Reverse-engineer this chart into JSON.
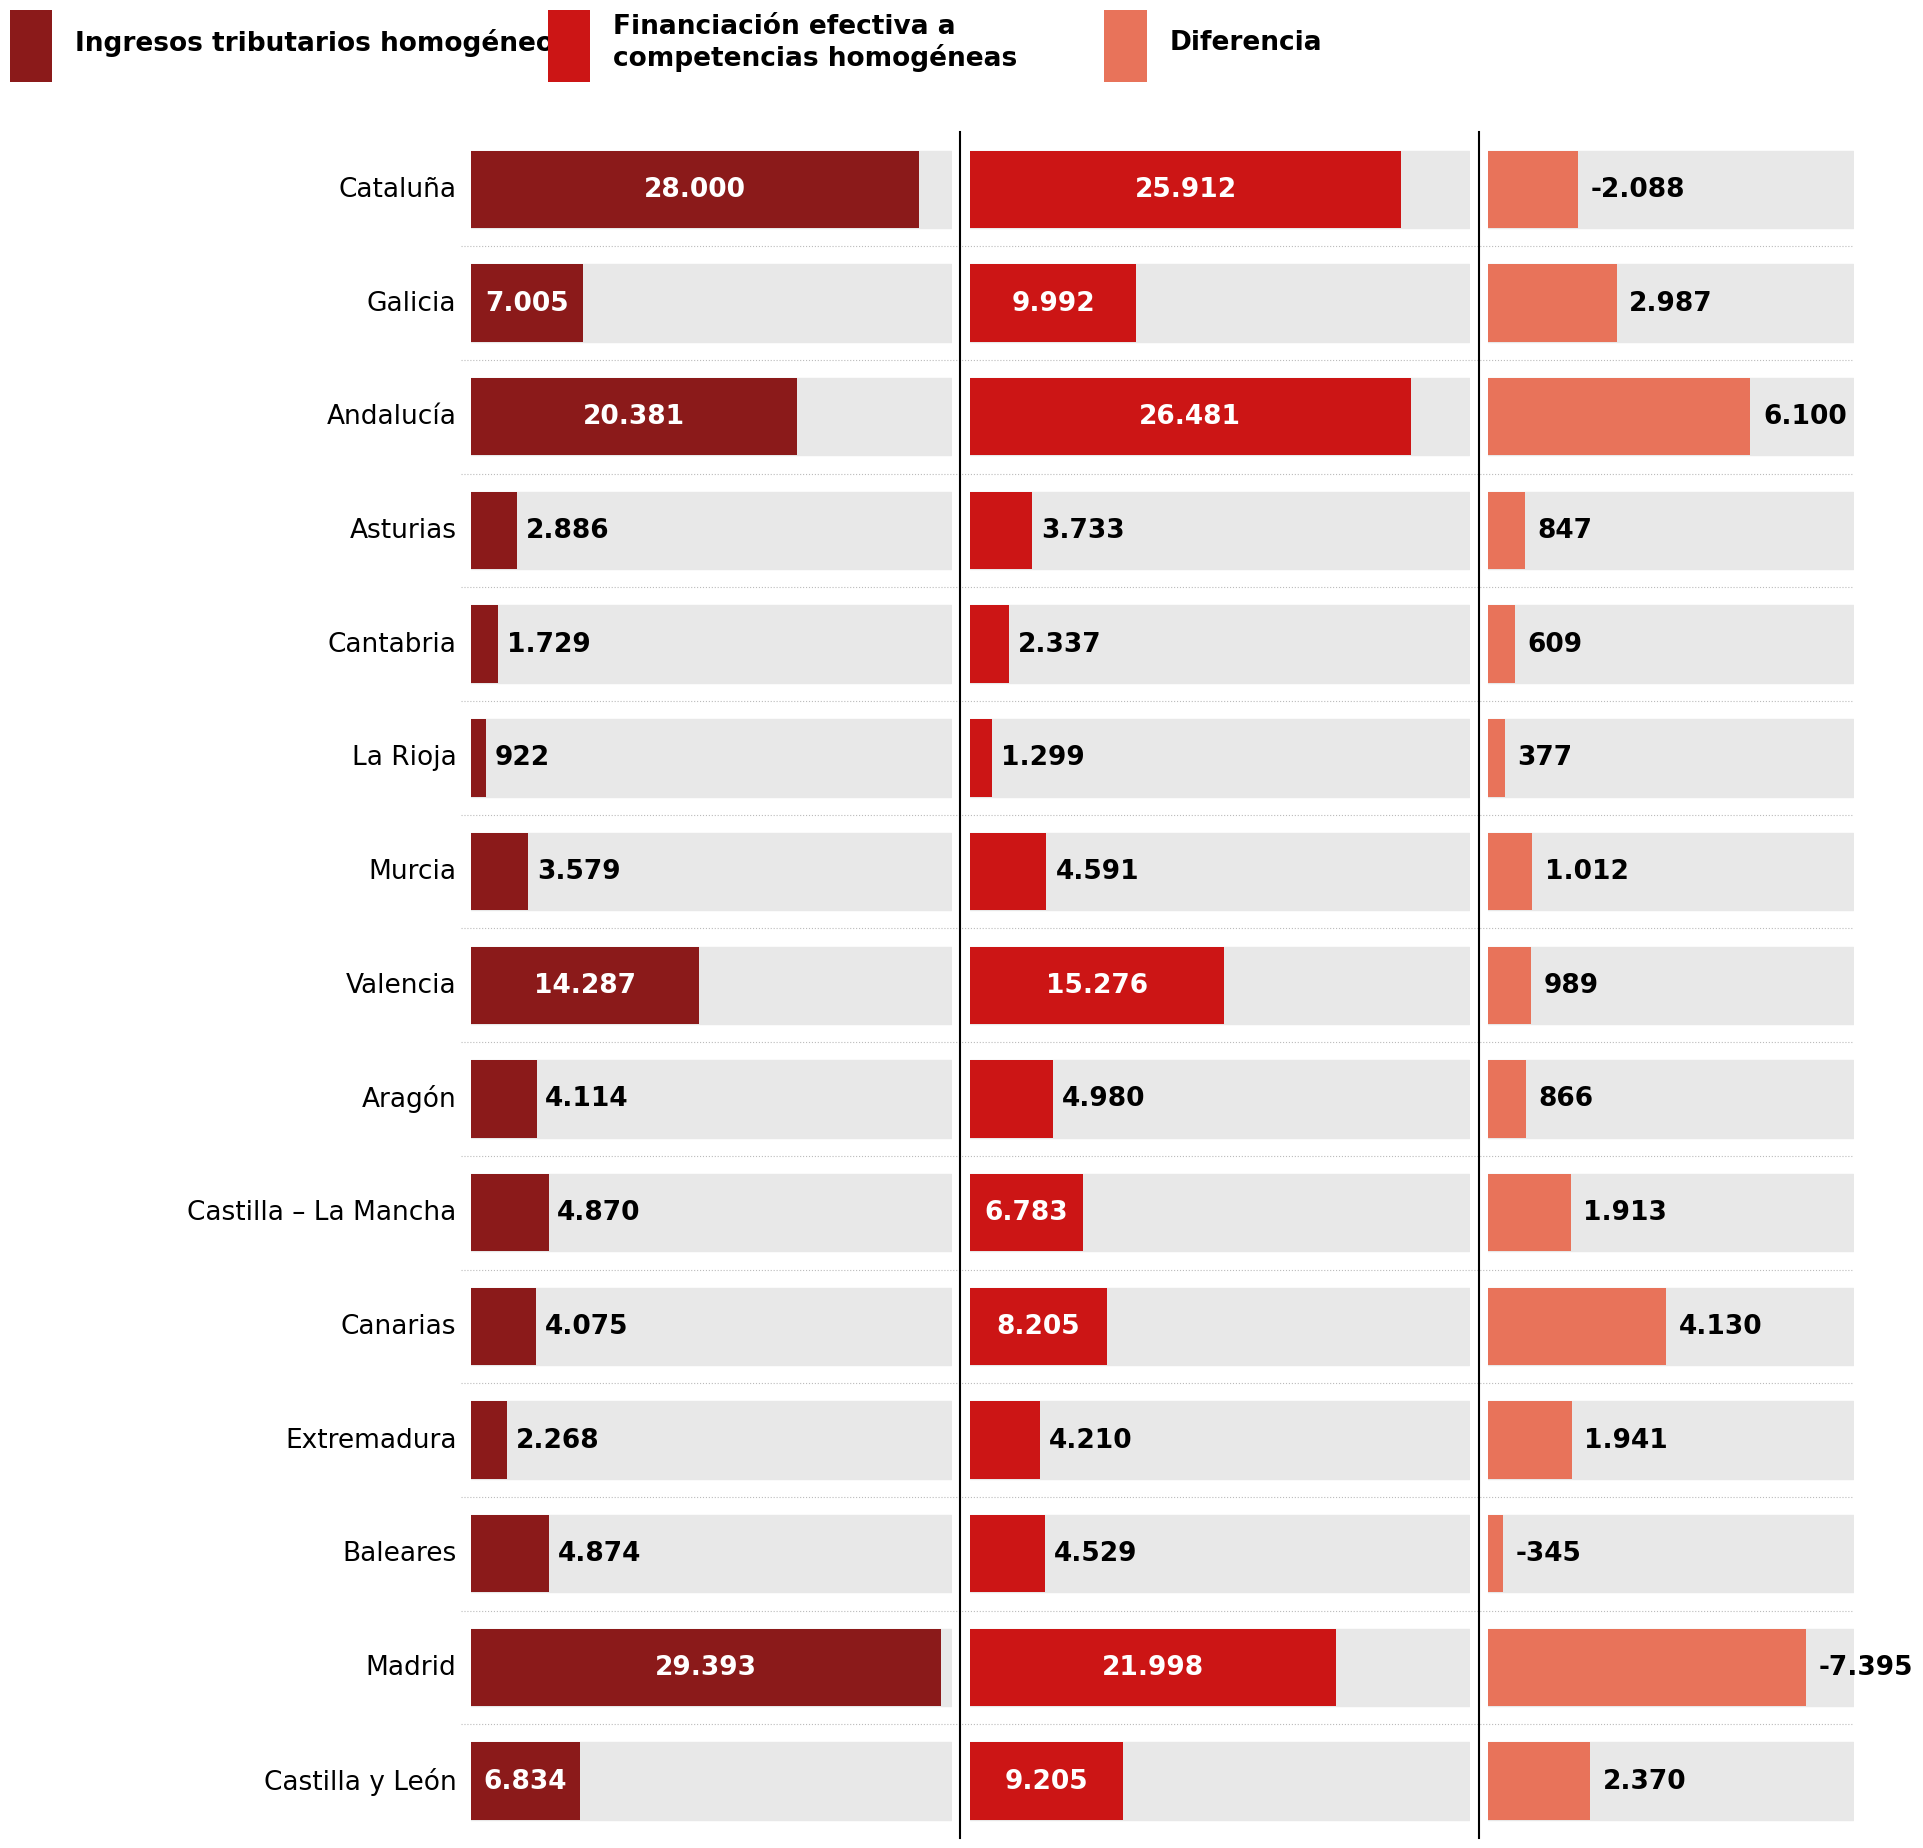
{
  "regions": [
    "Cataluña",
    "Galicia",
    "Andalucía",
    "Asturias",
    "Cantabria",
    "La Rioja",
    "Murcia",
    "Valencia",
    "Aragón",
    "Castilla – La Mancha",
    "Canarias",
    "Extremadura",
    "Baleares",
    "Madrid",
    "Castilla y León"
  ],
  "col1_values": [
    28000,
    7005,
    20381,
    2886,
    1729,
    922,
    3579,
    14287,
    4114,
    4870,
    4075,
    2268,
    4874,
    29393,
    6834
  ],
  "col2_values": [
    25912,
    9992,
    26481,
    3733,
    2337,
    1299,
    4591,
    15276,
    4980,
    6783,
    8205,
    4210,
    4529,
    21998,
    9205
  ],
  "col3_values": [
    -2088,
    2987,
    6100,
    847,
    609,
    377,
    1012,
    989,
    866,
    1913,
    4130,
    1941,
    -345,
    -7395,
    2370
  ],
  "col1_labels": [
    "28.000",
    "7.005",
    "20.381",
    "2.886",
    "1.729",
    "922",
    "3.579",
    "14.287",
    "4.114",
    "4.870",
    "4.075",
    "2.268",
    "4.874",
    "29.393",
    "6.834"
  ],
  "col2_labels": [
    "25.912",
    "9.992",
    "26.481",
    "3.733",
    "2.337",
    "1.299",
    "4.591",
    "15.276",
    "4.980",
    "6.783",
    "8.205",
    "4.210",
    "4.529",
    "21.998",
    "9.205"
  ],
  "col3_labels": [
    "-2.088",
    "2.987",
    "6.100",
    "847",
    "609",
    "377",
    "1.012",
    "989",
    "866",
    "1.913",
    "4.130",
    "1.941",
    "-345",
    "-7.395",
    "2.370"
  ],
  "color_col1": "#8B1A1A",
  "color_col2": "#CC1515",
  "color_col3": "#E8735A",
  "legend_labels": [
    "Ingresos tributarios homogéneos",
    "Financiación efectiva a\ncompetencias homogéneas",
    "Diferencia"
  ],
  "bg_color": "#FFFFFF",
  "bar_bg_color": "#E8E8E8",
  "max_col1": 30000,
  "max_col2": 30000,
  "max_col3": 8500
}
